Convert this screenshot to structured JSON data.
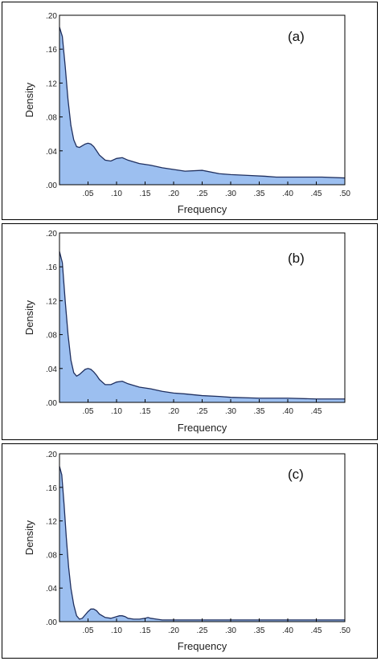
{
  "chart_data": [
    {
      "type": "area",
      "panel_label": "(a)",
      "xlabel": "Frequency",
      "ylabel": "Density",
      "xlim": [
        0,
        0.5
      ],
      "ylim": [
        0,
        0.2
      ],
      "x_ticks": [
        ".05",
        ".10",
        ".15",
        ".20",
        ".25",
        ".30",
        ".35",
        ".40",
        ".45",
        ".50"
      ],
      "y_ticks": [
        ".00",
        ".04",
        ".08",
        ".12",
        ".16",
        ".20"
      ],
      "x": [
        0.0,
        0.005,
        0.01,
        0.015,
        0.02,
        0.025,
        0.03,
        0.035,
        0.04,
        0.045,
        0.05,
        0.055,
        0.06,
        0.065,
        0.07,
        0.08,
        0.09,
        0.1,
        0.11,
        0.12,
        0.14,
        0.16,
        0.18,
        0.2,
        0.22,
        0.25,
        0.28,
        0.3,
        0.33,
        0.36,
        0.38,
        0.4,
        0.43,
        0.46,
        0.5
      ],
      "y": [
        0.186,
        0.175,
        0.14,
        0.1,
        0.07,
        0.053,
        0.045,
        0.044,
        0.046,
        0.048,
        0.049,
        0.048,
        0.045,
        0.04,
        0.035,
        0.029,
        0.028,
        0.031,
        0.032,
        0.029,
        0.025,
        0.023,
        0.02,
        0.018,
        0.016,
        0.017,
        0.013,
        0.012,
        0.011,
        0.01,
        0.009,
        0.009,
        0.009,
        0.009,
        0.008
      ]
    },
    {
      "type": "area",
      "panel_label": "(b)",
      "xlabel": "Frequency",
      "ylabel": "Density",
      "xlim": [
        0,
        0.5
      ],
      "ylim": [
        0,
        0.2
      ],
      "x_ticks": [
        ".05",
        ".10",
        ".15",
        ".20",
        ".25",
        ".30",
        ".35",
        ".40",
        ".45"
      ],
      "y_ticks": [
        ".00",
        ".04",
        ".08",
        ".12",
        ".16",
        ".20"
      ],
      "x": [
        0.0,
        0.005,
        0.01,
        0.015,
        0.02,
        0.025,
        0.03,
        0.035,
        0.04,
        0.045,
        0.05,
        0.055,
        0.06,
        0.065,
        0.07,
        0.08,
        0.09,
        0.1,
        0.11,
        0.12,
        0.14,
        0.16,
        0.18,
        0.2,
        0.22,
        0.25,
        0.28,
        0.3,
        0.35,
        0.4,
        0.45,
        0.5
      ],
      "y": [
        0.178,
        0.165,
        0.12,
        0.08,
        0.05,
        0.035,
        0.031,
        0.033,
        0.036,
        0.039,
        0.04,
        0.039,
        0.036,
        0.032,
        0.027,
        0.021,
        0.021,
        0.024,
        0.025,
        0.022,
        0.018,
        0.016,
        0.013,
        0.011,
        0.01,
        0.008,
        0.007,
        0.006,
        0.005,
        0.005,
        0.004,
        0.004
      ]
    },
    {
      "type": "area",
      "panel_label": "(c)",
      "xlabel": "Frequency",
      "ylabel": "Density",
      "xlim": [
        0,
        0.5
      ],
      "ylim": [
        0,
        0.2
      ],
      "x_ticks": [
        ".05",
        ".10",
        ".15",
        ".20",
        ".25",
        ".30",
        ".35",
        ".40",
        ".45",
        ".50"
      ],
      "y_ticks": [
        ".00",
        ".04",
        ".08",
        ".12",
        ".16",
        ".20"
      ],
      "x": [
        0.0,
        0.004,
        0.008,
        0.012,
        0.016,
        0.02,
        0.025,
        0.03,
        0.035,
        0.04,
        0.045,
        0.05,
        0.055,
        0.06,
        0.065,
        0.07,
        0.08,
        0.09,
        0.1,
        0.105,
        0.11,
        0.115,
        0.12,
        0.13,
        0.14,
        0.15,
        0.155,
        0.16,
        0.17,
        0.18,
        0.2,
        0.25,
        0.3,
        0.35,
        0.4,
        0.45,
        0.5
      ],
      "y": [
        0.185,
        0.175,
        0.14,
        0.1,
        0.065,
        0.04,
        0.02,
        0.007,
        0.003,
        0.004,
        0.008,
        0.012,
        0.015,
        0.015,
        0.013,
        0.009,
        0.005,
        0.004,
        0.006,
        0.007,
        0.007,
        0.006,
        0.004,
        0.003,
        0.003,
        0.004,
        0.005,
        0.004,
        0.003,
        0.002,
        0.002,
        0.002,
        0.002,
        0.002,
        0.002,
        0.002,
        0.002
      ]
    }
  ],
  "colors": {
    "fill": "#9cbff0",
    "line": "#1f2f5f",
    "axis": "#000000"
  }
}
